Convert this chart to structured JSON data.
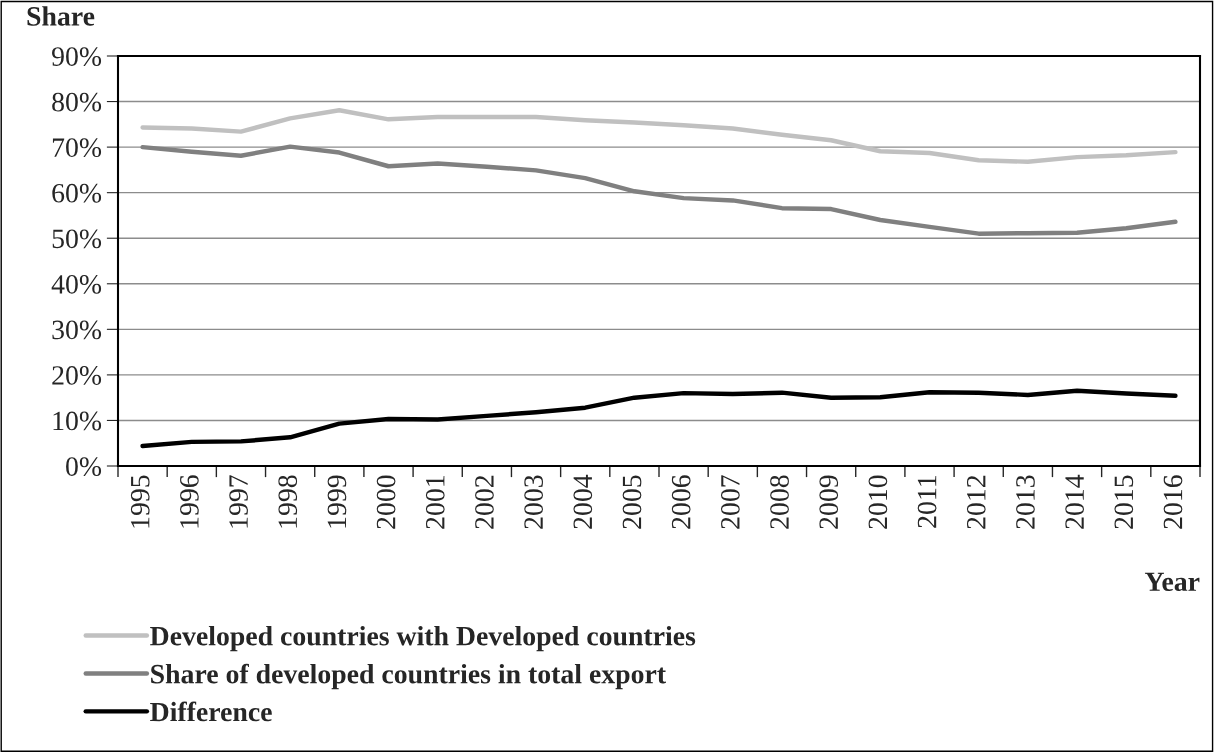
{
  "chart_data": {
    "type": "line",
    "xlabel": "Year",
    "ylabel": "Share",
    "categories": [
      "1995",
      "1996",
      "1997",
      "1998",
      "1999",
      "2000",
      "2001",
      "2002",
      "2003",
      "2004",
      "2005",
      "2006",
      "2007",
      "2008",
      "2009",
      "2010",
      "2011",
      "2012",
      "2013",
      "2014",
      "2015",
      "2016"
    ],
    "series": [
      {
        "name": "Developed countries with Developed countries",
        "color": "#c0c0c0",
        "values": [
          74.3,
          74.1,
          73.4,
          76.3,
          78.1,
          76.1,
          76.6,
          76.6,
          76.6,
          75.9,
          75.4,
          74.8,
          74.1,
          72.7,
          71.5,
          69.1,
          68.7,
          67.1,
          66.8,
          67.8,
          68.2,
          68.9
        ]
      },
      {
        "name": "Share of developed countries in total export",
        "color": "#808080",
        "values": [
          70.0,
          69.0,
          68.1,
          70.1,
          68.8,
          65.8,
          66.4,
          65.7,
          64.9,
          63.2,
          60.3,
          58.8,
          58.3,
          56.6,
          56.4,
          54.0,
          52.5,
          51.0,
          51.1,
          51.2,
          52.2,
          53.6
        ]
      },
      {
        "name": "Difference",
        "color": "#000000",
        "values": [
          4.4,
          5.3,
          5.4,
          6.3,
          9.3,
          10.3,
          10.2,
          11.0,
          11.8,
          12.8,
          15.0,
          16.0,
          15.8,
          16.1,
          15.0,
          15.1,
          16.2,
          16.1,
          15.6,
          16.5,
          15.9,
          15.4
        ]
      }
    ],
    "ylim": [
      0,
      90
    ],
    "yticks": [
      {
        "value": 0,
        "label": "0%"
      },
      {
        "value": 10,
        "label": "10%"
      },
      {
        "value": 20,
        "label": "20%"
      },
      {
        "value": 30,
        "label": "30%"
      },
      {
        "value": 40,
        "label": "40%"
      },
      {
        "value": 50,
        "label": "50%"
      },
      {
        "value": 60,
        "label": "60%"
      },
      {
        "value": 70,
        "label": "70%"
      },
      {
        "value": 80,
        "label": "80%"
      },
      {
        "value": 90,
        "label": "90%"
      }
    ],
    "grid": "y",
    "legend": "bottom left",
    "marker": "none",
    "line_style": "solid"
  }
}
